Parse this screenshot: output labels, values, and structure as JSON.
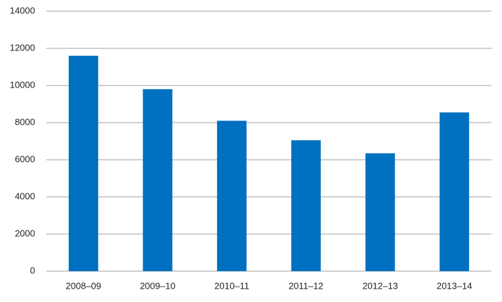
{
  "chart_data": {
    "type": "bar",
    "categories": [
      "2008–09",
      "2009–10",
      "2010–11",
      "2011–12",
      "2012–13",
      "2013–14"
    ],
    "values": [
      11600,
      9800,
      8100,
      7050,
      6350,
      8550
    ],
    "color": "#0070c0",
    "ylim": [
      0,
      14000
    ],
    "yticks": [
      0,
      2000,
      4000,
      6000,
      8000,
      10000,
      12000,
      14000
    ],
    "grid": true
  }
}
